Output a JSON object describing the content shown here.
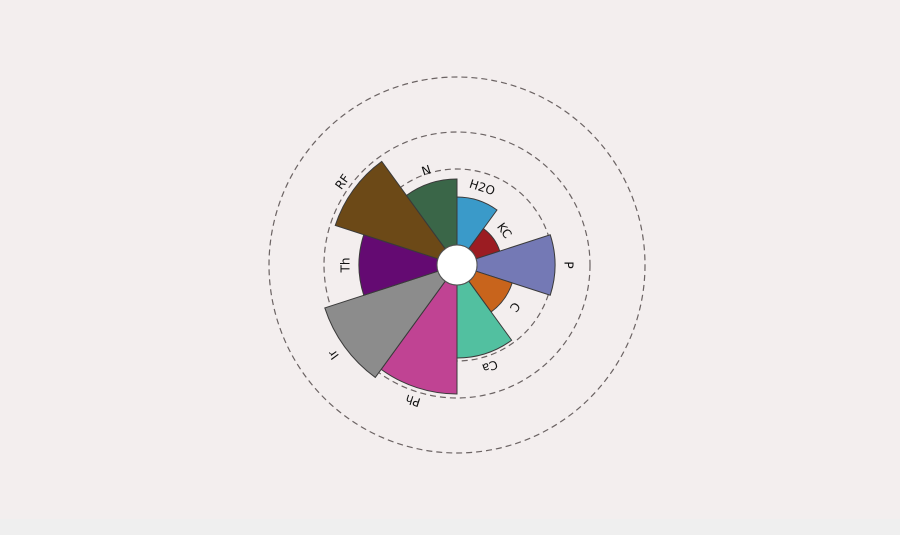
{
  "chart_data": {
    "type": "polar-bar",
    "title": "",
    "start_angle": "top",
    "direction": "clockwise",
    "grid": {
      "shown": true,
      "style": "dashed",
      "rings": [
        76,
        113,
        168
      ]
    },
    "categories": [
      "H2O",
      "KC",
      "P",
      "C",
      "Ca",
      "Ph",
      "Ir",
      "Th",
      "RF",
      "N"
    ],
    "values": [
      48,
      25,
      78,
      38,
      73,
      109,
      119,
      78,
      108,
      66
    ],
    "colors": [
      "#3a9ac9",
      "#9b1c22",
      "#7479b5",
      "#c8641c",
      "#52c0a0",
      "#c04393",
      "#8c8c8c",
      "#640a72",
      "#6c4917",
      "#3a6648"
    ]
  }
}
